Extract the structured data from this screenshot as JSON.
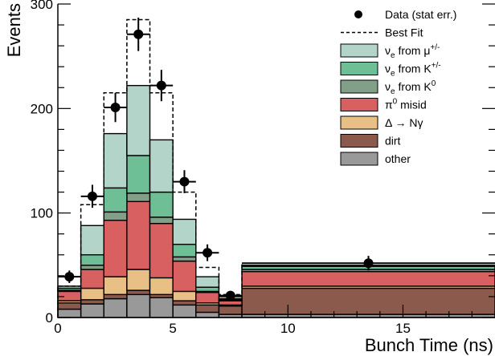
{
  "chart_data": {
    "type": "bar",
    "title": "",
    "xlabel": "Bunch Time (ns)",
    "ylabel": "Events",
    "xlim": [
      0,
      19
    ],
    "ylim": [
      0,
      300
    ],
    "x_major_ticks": [
      0,
      5,
      10,
      15
    ],
    "y_major_ticks": [
      0,
      100,
      200,
      300
    ],
    "bin_edges": [
      0,
      1,
      2,
      3,
      4,
      5,
      6,
      7,
      8,
      19
    ],
    "stacked": true,
    "legend_position": "top-right",
    "series": [
      {
        "name": "other",
        "color": "#999999",
        "values": [
          8,
          13,
          18,
          22,
          19,
          12,
          5,
          3,
          3
        ]
      },
      {
        "name": "dirt",
        "color": "#8c5a4c",
        "values": [
          6,
          4,
          4,
          4,
          3,
          4,
          7,
          8,
          25
        ]
      },
      {
        "name": "Δ → Nγ",
        "color": "#e8bf85",
        "values": [
          2,
          11,
          17,
          20,
          16,
          9,
          2,
          1,
          2
        ]
      },
      {
        "name": "π⁰ misid",
        "color": "#d96060",
        "values": [
          9,
          18,
          54,
          65,
          52,
          29,
          10,
          4,
          14
        ]
      },
      {
        "name": "νₑ from K⁰",
        "color": "#829f88",
        "values": [
          1,
          4,
          8,
          8,
          6,
          4,
          1,
          1,
          2
        ]
      },
      {
        "name": "νₑ from K⁺ᐟ⁻",
        "color": "#6fbf96",
        "values": [
          2,
          10,
          23,
          36,
          24,
          12,
          4,
          1,
          3
        ]
      },
      {
        "name": "νₑ from μ⁺ᐟ⁻",
        "color": "#b3d4c8",
        "values": [
          2,
          28,
          52,
          67,
          50,
          24,
          10,
          2,
          1
        ]
      }
    ],
    "best_fit": {
      "name": "Best Fit",
      "values": [
        30,
        108,
        215,
        285,
        215,
        120,
        48,
        22,
        52
      ]
    },
    "data_points": {
      "name": "Data (stat err.)",
      "x": [
        0.5,
        1.5,
        2.5,
        3.5,
        4.5,
        5.5,
        6.5,
        7.5,
        13.5
      ],
      "y": [
        39,
        116,
        201,
        271,
        222,
        130,
        62,
        21,
        52
      ],
      "yerr": [
        6,
        11,
        14,
        16,
        15,
        11,
        8,
        4,
        7
      ],
      "xerr": [
        0.5,
        0.5,
        0.5,
        0.5,
        0.5,
        0.5,
        0.5,
        0.5,
        5.5
      ]
    }
  },
  "legend": [
    {
      "type": "marker",
      "label": "Data (stat err.)"
    },
    {
      "type": "dashed",
      "label": "Best Fit"
    },
    {
      "type": "box",
      "color": "#b3d4c8",
      "label": "ν",
      "sub": "e",
      "rest": " from μ",
      "sup": "+/-"
    },
    {
      "type": "box",
      "color": "#6fbf96",
      "label": "ν",
      "sub": "e",
      "rest": " from K",
      "sup": "+/-"
    },
    {
      "type": "box",
      "color": "#829f88",
      "label": "ν",
      "sub": "e",
      "rest": " from K",
      "sup": "0"
    },
    {
      "type": "box",
      "color": "#d96060",
      "label": "π",
      "sub": "",
      "rest": " misid",
      "sup": "0",
      "sup_first": true
    },
    {
      "type": "box",
      "color": "#e8bf85",
      "label": "Δ → Nγ",
      "sub": "",
      "rest": "",
      "sup": ""
    },
    {
      "type": "box",
      "color": "#8c5a4c",
      "label": "dirt",
      "sub": "",
      "rest": "",
      "sup": ""
    },
    {
      "type": "box",
      "color": "#999999",
      "label": "other",
      "sub": "",
      "rest": "",
      "sup": ""
    }
  ]
}
